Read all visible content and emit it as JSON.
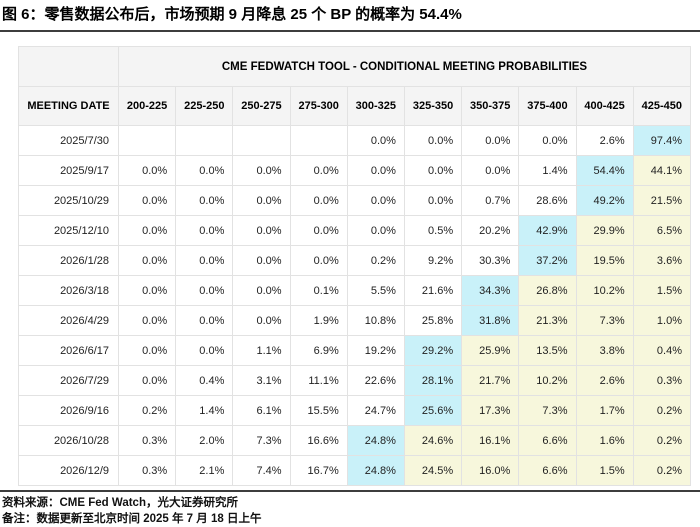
{
  "figure_title": "图 6：零售数据公布后，市场预期 9 月降息 25 个 BP 的概率为 54.4%",
  "table": {
    "banner": "CME FEDWATCH TOOL - CONDITIONAL MEETING PROBABILITIES",
    "date_column_header": "MEETING DATE",
    "rate_columns": [
      "200-225",
      "225-250",
      "250-275",
      "275-300",
      "300-325",
      "325-350",
      "350-375",
      "375-400",
      "400-425",
      "425-450"
    ],
    "rows": [
      {
        "date": "2025/7/30",
        "values": [
          "",
          "",
          "",
          "",
          "0.0%",
          "0.0%",
          "0.0%",
          "0.0%",
          "2.6%",
          "97.4%"
        ],
        "highlights": [
          "",
          "",
          "",
          "",
          "",
          "",
          "",
          "",
          "",
          "cyan"
        ]
      },
      {
        "date": "2025/9/17",
        "values": [
          "0.0%",
          "0.0%",
          "0.0%",
          "0.0%",
          "0.0%",
          "0.0%",
          "0.0%",
          "1.4%",
          "54.4%",
          "44.1%"
        ],
        "highlights": [
          "",
          "",
          "",
          "",
          "",
          "",
          "",
          "",
          "cyan",
          "yellow"
        ]
      },
      {
        "date": "2025/10/29",
        "values": [
          "0.0%",
          "0.0%",
          "0.0%",
          "0.0%",
          "0.0%",
          "0.0%",
          "0.7%",
          "28.6%",
          "49.2%",
          "21.5%"
        ],
        "highlights": [
          "",
          "",
          "",
          "",
          "",
          "",
          "",
          "",
          "cyan",
          "yellow"
        ]
      },
      {
        "date": "2025/12/10",
        "values": [
          "0.0%",
          "0.0%",
          "0.0%",
          "0.0%",
          "0.0%",
          "0.5%",
          "20.2%",
          "42.9%",
          "29.9%",
          "6.5%"
        ],
        "highlights": [
          "",
          "",
          "",
          "",
          "",
          "",
          "",
          "cyan",
          "yellow",
          "yellow"
        ]
      },
      {
        "date": "2026/1/28",
        "values": [
          "0.0%",
          "0.0%",
          "0.0%",
          "0.0%",
          "0.2%",
          "9.2%",
          "30.3%",
          "37.2%",
          "19.5%",
          "3.6%"
        ],
        "highlights": [
          "",
          "",
          "",
          "",
          "",
          "",
          "",
          "cyan",
          "yellow",
          "yellow"
        ]
      },
      {
        "date": "2026/3/18",
        "values": [
          "0.0%",
          "0.0%",
          "0.0%",
          "0.1%",
          "5.5%",
          "21.6%",
          "34.3%",
          "26.8%",
          "10.2%",
          "1.5%"
        ],
        "highlights": [
          "",
          "",
          "",
          "",
          "",
          "",
          "cyan",
          "yellow",
          "yellow",
          "yellow"
        ]
      },
      {
        "date": "2026/4/29",
        "values": [
          "0.0%",
          "0.0%",
          "0.0%",
          "1.9%",
          "10.8%",
          "25.8%",
          "31.8%",
          "21.3%",
          "7.3%",
          "1.0%"
        ],
        "highlights": [
          "",
          "",
          "",
          "",
          "",
          "",
          "cyan",
          "yellow",
          "yellow",
          "yellow"
        ]
      },
      {
        "date": "2026/6/17",
        "values": [
          "0.0%",
          "0.0%",
          "1.1%",
          "6.9%",
          "19.2%",
          "29.2%",
          "25.9%",
          "13.5%",
          "3.8%",
          "0.4%"
        ],
        "highlights": [
          "",
          "",
          "",
          "",
          "",
          "cyan",
          "yellow",
          "yellow",
          "yellow",
          "yellow"
        ]
      },
      {
        "date": "2026/7/29",
        "values": [
          "0.0%",
          "0.4%",
          "3.1%",
          "11.1%",
          "22.6%",
          "28.1%",
          "21.7%",
          "10.2%",
          "2.6%",
          "0.3%"
        ],
        "highlights": [
          "",
          "",
          "",
          "",
          "",
          "cyan",
          "yellow",
          "yellow",
          "yellow",
          "yellow"
        ]
      },
      {
        "date": "2026/9/16",
        "values": [
          "0.2%",
          "1.4%",
          "6.1%",
          "15.5%",
          "24.7%",
          "25.6%",
          "17.3%",
          "7.3%",
          "1.7%",
          "0.2%"
        ],
        "highlights": [
          "",
          "",
          "",
          "",
          "",
          "cyan",
          "yellow",
          "yellow",
          "yellow",
          "yellow"
        ]
      },
      {
        "date": "2026/10/28",
        "values": [
          "0.3%",
          "2.0%",
          "7.3%",
          "16.6%",
          "24.8%",
          "24.6%",
          "16.1%",
          "6.6%",
          "1.6%",
          "0.2%"
        ],
        "highlights": [
          "",
          "",
          "",
          "",
          "cyan",
          "yellow",
          "yellow",
          "yellow",
          "yellow",
          "yellow"
        ]
      },
      {
        "date": "2026/12/9",
        "values": [
          "0.3%",
          "2.1%",
          "7.4%",
          "16.7%",
          "24.8%",
          "24.5%",
          "16.0%",
          "6.6%",
          "1.5%",
          "0.2%"
        ],
        "highlights": [
          "",
          "",
          "",
          "",
          "cyan",
          "yellow",
          "yellow",
          "yellow",
          "yellow",
          "yellow"
        ]
      }
    ]
  },
  "footer": {
    "source": "资料来源：CME Fed Watch，光大证券研究所",
    "note": "备注：数据更新至北京时间 2025 年 7 月 18 日上午"
  },
  "colors": {
    "highlight_max": "#c9f1f9",
    "highlight_tail": "#f7f7dc",
    "header_bg": "#f4f4f4",
    "grid_border": "#e2e2e2",
    "rule": "#3d3d3d"
  },
  "chart_data": {
    "type": "table",
    "title": "CME FEDWATCH TOOL - CONDITIONAL MEETING PROBABILITIES",
    "units": "percent probability of target rate range (bp)",
    "columns": [
      "MEETING DATE",
      "200-225",
      "225-250",
      "250-275",
      "275-300",
      "300-325",
      "325-350",
      "350-375",
      "375-400",
      "400-425",
      "425-450"
    ],
    "rows": [
      [
        "2025/7/30",
        null,
        null,
        null,
        null,
        0.0,
        0.0,
        0.0,
        0.0,
        2.6,
        97.4
      ],
      [
        "2025/9/17",
        0.0,
        0.0,
        0.0,
        0.0,
        0.0,
        0.0,
        0.0,
        1.4,
        54.4,
        44.1
      ],
      [
        "2025/10/29",
        0.0,
        0.0,
        0.0,
        0.0,
        0.0,
        0.0,
        0.7,
        28.6,
        49.2,
        21.5
      ],
      [
        "2025/12/10",
        0.0,
        0.0,
        0.0,
        0.0,
        0.0,
        0.5,
        20.2,
        42.9,
        29.9,
        6.5
      ],
      [
        "2026/1/28",
        0.0,
        0.0,
        0.0,
        0.0,
        0.2,
        9.2,
        30.3,
        37.2,
        19.5,
        3.6
      ],
      [
        "2026/3/18",
        0.0,
        0.0,
        0.0,
        0.1,
        5.5,
        21.6,
        34.3,
        26.8,
        10.2,
        1.5
      ],
      [
        "2026/4/29",
        0.0,
        0.0,
        0.0,
        1.9,
        10.8,
        25.8,
        31.8,
        21.3,
        7.3,
        1.0
      ],
      [
        "2026/6/17",
        0.0,
        0.0,
        1.1,
        6.9,
        19.2,
        29.2,
        25.9,
        13.5,
        3.8,
        0.4
      ],
      [
        "2026/7/29",
        0.0,
        0.4,
        3.1,
        11.1,
        22.6,
        28.1,
        21.7,
        10.2,
        2.6,
        0.3
      ],
      [
        "2026/9/16",
        0.2,
        1.4,
        6.1,
        15.5,
        24.7,
        25.6,
        17.3,
        7.3,
        1.7,
        0.2
      ],
      [
        "2026/10/28",
        0.3,
        2.0,
        7.3,
        16.6,
        24.8,
        24.6,
        16.1,
        6.6,
        1.6,
        0.2
      ],
      [
        "2026/12/9",
        0.3,
        2.1,
        7.4,
        16.7,
        24.8,
        24.5,
        16.0,
        6.6,
        1.5,
        0.2
      ]
    ],
    "highlight_legend": {
      "cyan": "highest probability cell in each row",
      "yellow": "probabilities to the right of the row maximum"
    },
    "layout": {
      "grid": true,
      "header_band": true,
      "legend_position": "none"
    }
  }
}
